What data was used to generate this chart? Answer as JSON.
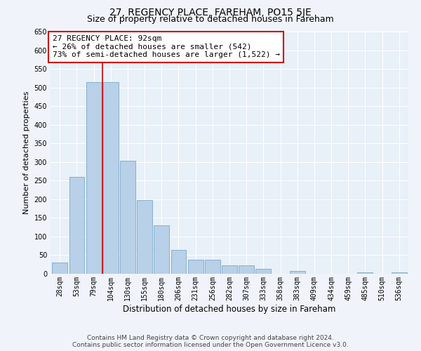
{
  "title": "27, REGENCY PLACE, FAREHAM, PO15 5JE",
  "subtitle": "Size of property relative to detached houses in Fareham",
  "xlabel": "Distribution of detached houses by size in Fareham",
  "ylabel": "Number of detached properties",
  "categories": [
    "28sqm",
    "53sqm",
    "79sqm",
    "104sqm",
    "130sqm",
    "155sqm",
    "180sqm",
    "206sqm",
    "231sqm",
    "256sqm",
    "282sqm",
    "307sqm",
    "333sqm",
    "358sqm",
    "383sqm",
    "409sqm",
    "434sqm",
    "459sqm",
    "485sqm",
    "510sqm",
    "536sqm"
  ],
  "values": [
    30,
    260,
    515,
    515,
    303,
    197,
    130,
    65,
    38,
    38,
    22,
    22,
    14,
    0,
    8,
    0,
    0,
    0,
    4,
    0,
    4
  ],
  "bar_color": "#b8d0e8",
  "bar_edge_color": "#7aaac8",
  "vline_x": 2.5,
  "vline_color": "#cc0000",
  "annotation_text": "27 REGENCY PLACE: 92sqm\n← 26% of detached houses are smaller (542)\n73% of semi-detached houses are larger (1,522) →",
  "annotation_box_color": "#ffffff",
  "annotation_box_edge": "#cc0000",
  "ylim": [
    0,
    650
  ],
  "yticks": [
    0,
    50,
    100,
    150,
    200,
    250,
    300,
    350,
    400,
    450,
    500,
    550,
    600,
    650
  ],
  "bg_color": "#f0f4fa",
  "plot_bg_color": "#e8f0f8",
  "footer": "Contains HM Land Registry data © Crown copyright and database right 2024.\nContains public sector information licensed under the Open Government Licence v3.0.",
  "title_fontsize": 10,
  "subtitle_fontsize": 9,
  "xlabel_fontsize": 8.5,
  "ylabel_fontsize": 8,
  "tick_fontsize": 7,
  "annotation_fontsize": 8,
  "footer_fontsize": 6.5
}
